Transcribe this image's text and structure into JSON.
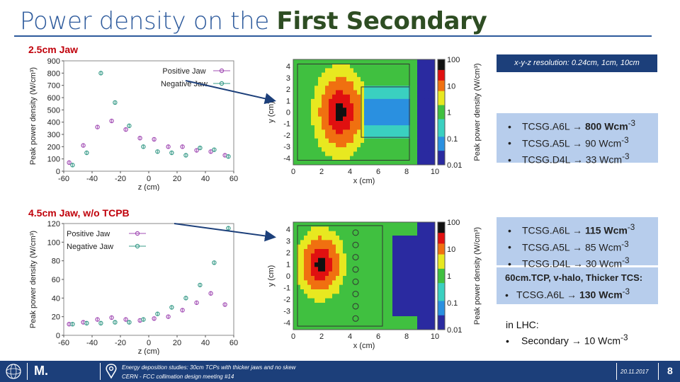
{
  "slide": {
    "title_prefix": "Power density on the ",
    "title_highlight": "First Secondary",
    "page_number": "8"
  },
  "section1": {
    "label": "2.5cm Jaw",
    "resolution": "x-y-z resolution: 0.24cm, 1cm, 10cm",
    "results": [
      {
        "bullet": "•",
        "text": "TCSG.A6L → ",
        "value": "800 Wcm",
        "sup": "-3"
      },
      {
        "bullet": "•",
        "text": "TCSG.A5L → 90 Wcm",
        "value": "",
        "sup": "-3"
      },
      {
        "bullet": "•",
        "text": "TCSG.D4L → 33 Wcm",
        "value": "",
        "sup": "-3"
      }
    ]
  },
  "section2": {
    "label": "4.5cm Jaw, w/o TCPB",
    "results": [
      {
        "bullet": "•",
        "text": "TCSG.A6L → ",
        "value": "115 Wcm",
        "sup": "-3"
      },
      {
        "bullet": "•",
        "text": "TCSG.A5L → 85 Wcm",
        "value": "",
        "sup": "-3"
      },
      {
        "bullet": "•",
        "text": "TCSG.D4L → 30 Wcm",
        "value": "",
        "sup": "-3"
      }
    ],
    "note1_title": "60cm.TCP, v-halo, Thicker TCS:",
    "note1_item": "TCSG.A6L → ",
    "note1_value": "130 Wcm",
    "note2_title": "in LHC:",
    "note2_item": "Secondary → 10 Wcm",
    "sup": "-3"
  },
  "footer": {
    "logo_text": "M.",
    "line1": "Energy deposition studies: 30cm TCPs with thicker jaws and no skew",
    "line2": "CERN - FCC collimation design meeting #14",
    "date": "20.11.2017"
  },
  "colors": {
    "title_blue": "#2d5a9c",
    "highlight_green": "#2e4d23",
    "section_red": "#c0000a",
    "box_blue": "#b7cdec",
    "footer_navy": "#1c3f7a",
    "positive_jaw": "#a34fb5",
    "negative_jaw": "#3a9c8a"
  },
  "chart_data": [
    {
      "type": "scatter",
      "title": "",
      "xlabel": "z (cm)",
      "ylabel": "Peak power density (W/cm³)",
      "xlim": [
        -60,
        60
      ],
      "ylim": [
        0,
        900
      ],
      "xticks": [
        "-60",
        "-40",
        "-20",
        "0",
        "20",
        "40",
        "60"
      ],
      "yticks": [
        "0",
        "100",
        "200",
        "300",
        "400",
        "500",
        "600",
        "700",
        "800",
        "900"
      ],
      "legend": "top-right",
      "series": [
        {
          "name": "Positive Jaw",
          "x": [
            -55,
            -45,
            -35,
            -25,
            -15,
            -5,
            5,
            15,
            25,
            35,
            45,
            55
          ],
          "y": [
            70,
            210,
            360,
            410,
            340,
            270,
            260,
            200,
            200,
            170,
            160,
            130
          ]
        },
        {
          "name": "Negative Jaw",
          "x": [
            -55,
            -45,
            -35,
            -25,
            -15,
            -5,
            5,
            15,
            25,
            35,
            45,
            55
          ],
          "y": [
            50,
            150,
            800,
            560,
            370,
            200,
            160,
            150,
            130,
            190,
            175,
            120
          ]
        }
      ]
    },
    {
      "type": "heatmap",
      "xlabel": "x (cm)",
      "ylabel": "y (cm)",
      "colorbar_label": "Peak power density (W/cm³)",
      "xticks": [
        "0",
        "2",
        "4",
        "6",
        "8",
        "10"
      ],
      "yticks": [
        "-4",
        "-3",
        "-2",
        "-1",
        "0",
        "1",
        "2",
        "3",
        "4"
      ],
      "colorbar_ticks": [
        "100",
        "10",
        "1",
        "0.1",
        "0.01"
      ]
    },
    {
      "type": "scatter",
      "title": "",
      "xlabel": "z (cm)",
      "ylabel": "Peak power density (W/cm³)",
      "xlim": [
        -60,
        60
      ],
      "ylim": [
        0,
        120
      ],
      "xticks": [
        "-60",
        "-40",
        "-20",
        "0",
        "20",
        "40",
        "60"
      ],
      "yticks": [
        "0",
        "20",
        "40",
        "60",
        "80",
        "100",
        "120"
      ],
      "legend": "top-left",
      "series": [
        {
          "name": "Positive Jaw",
          "x": [
            -55,
            -45,
            -35,
            -25,
            -15,
            -5,
            5,
            15,
            25,
            35,
            45,
            55
          ],
          "y": [
            12,
            14,
            17,
            19,
            17,
            16,
            18,
            20,
            27,
            35,
            45,
            33
          ]
        },
        {
          "name": "Negative Jaw",
          "x": [
            -55,
            -45,
            -35,
            -25,
            -15,
            -5,
            5,
            15,
            25,
            35,
            45,
            55
          ],
          "y": [
            12,
            13,
            13,
            14,
            14,
            17,
            23,
            30,
            40,
            54,
            78,
            115
          ]
        }
      ]
    },
    {
      "type": "heatmap",
      "xlabel": "x (cm)",
      "ylabel": "y (cm)",
      "colorbar_label": "Peak power density (W/cm³)",
      "xticks": [
        "0",
        "2",
        "4",
        "6",
        "8",
        "10"
      ],
      "yticks": [
        "-4",
        "-3",
        "-2",
        "-1",
        "0",
        "1",
        "2",
        "3",
        "4"
      ],
      "colorbar_ticks": [
        "100",
        "10",
        "1",
        "0.1",
        "0.01"
      ]
    }
  ]
}
